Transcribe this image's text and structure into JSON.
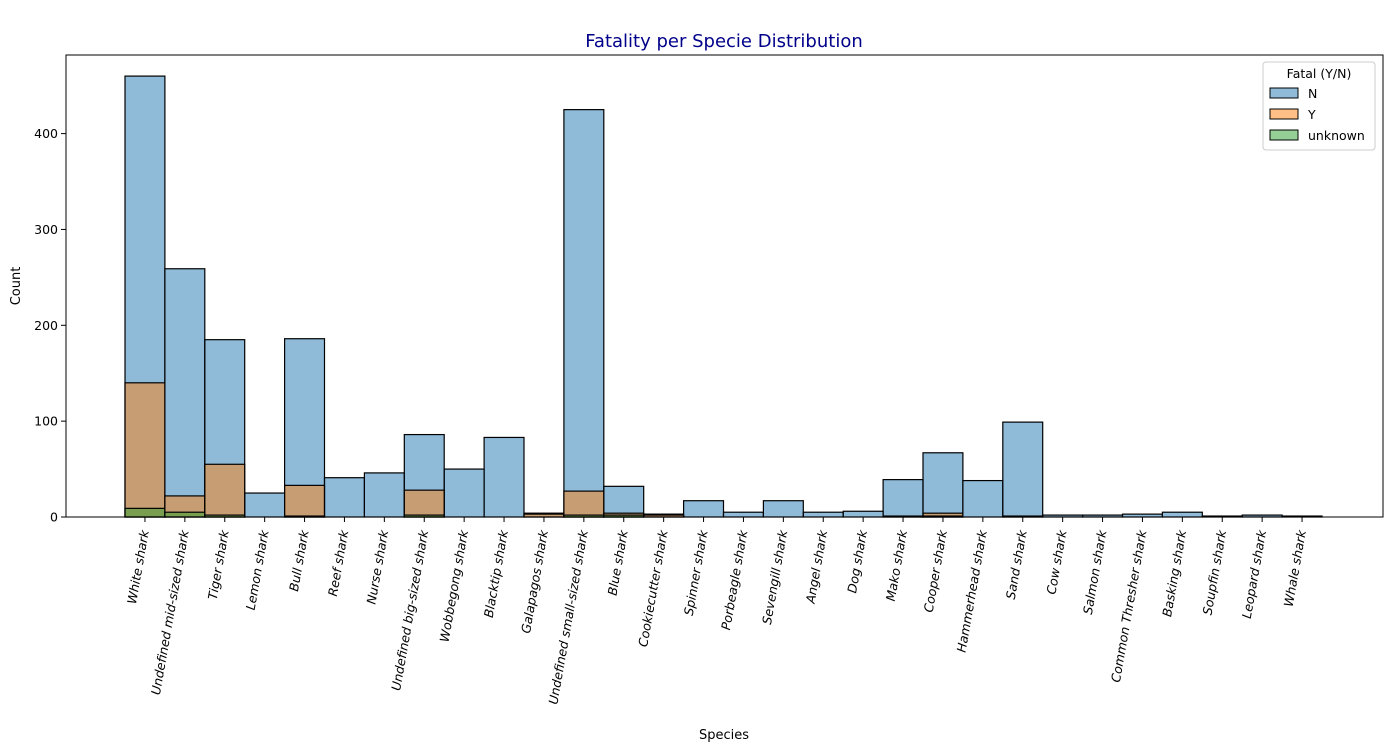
{
  "chart_data": {
    "type": "bar",
    "title": "Fatality per Specie Distribution",
    "xlabel": "Species",
    "ylabel": "Count",
    "ylim": [
      0,
      482
    ],
    "yticks": [
      0,
      100,
      200,
      300,
      400
    ],
    "grid": false,
    "legend": {
      "title": "Fatal (Y/N)",
      "placement": "top-right"
    },
    "categories": [
      "White shark",
      "Undefined mid-sized shark",
      "Tiger shark",
      "Lemon shark",
      "Bull shark",
      "Reef shark",
      "Nurse shark",
      "Undefined big-sized shark",
      "Wobbegong shark",
      "Blacktip shark",
      "Galapagos shark",
      "Undefined small-sized shark",
      "Blue shark",
      "Cookiecutter shark",
      "Spinner shark",
      "Porbeagle shark",
      "Sevengill shark",
      "Angel shark",
      "Dog shark",
      "Mako shark",
      "Cooper shark",
      "Hammerhead shark",
      "Sand shark",
      "Cow shark",
      "Salmon shark",
      "Common Thresher shark",
      "Basking shark",
      "Soupfin shark",
      "Leopard shark",
      "Whale shark"
    ],
    "series": [
      {
        "name": "N",
        "color": "#1f77b4",
        "values": [
          460,
          259,
          185,
          25,
          186,
          41,
          46,
          86,
          50,
          83,
          4,
          425,
          32,
          3,
          17,
          5,
          17,
          5,
          6,
          39,
          67,
          38,
          99,
          2,
          2,
          3,
          5,
          1,
          2,
          1
        ]
      },
      {
        "name": "Y",
        "color": "#ff7f0e",
        "values": [
          140,
          22,
          55,
          0,
          33,
          0,
          0,
          28,
          0,
          0,
          3,
          27,
          4,
          2,
          0,
          0,
          0,
          0,
          0,
          1,
          4,
          0,
          1,
          0,
          0,
          0,
          0,
          0,
          0,
          0
        ]
      },
      {
        "name": "unknown",
        "color": "#2ca02c",
        "values": [
          9,
          5,
          2,
          0,
          1,
          0,
          0,
          2,
          0,
          0,
          0,
          2,
          2,
          0,
          0,
          0,
          0,
          0,
          0,
          0,
          1,
          0,
          0,
          0,
          0,
          0,
          0,
          0,
          0,
          0
        ]
      }
    ]
  }
}
